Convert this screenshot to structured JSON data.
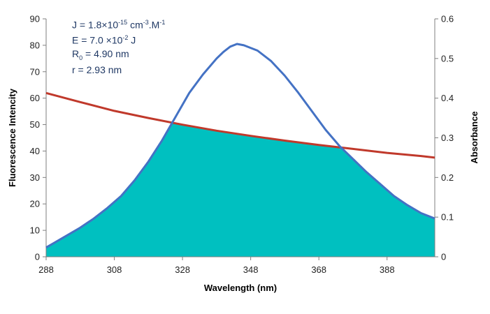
{
  "chart_data": {
    "type": "area",
    "title": "",
    "xlabel": "Wavelength (nm)",
    "ylabel": "Fluorescence Intencity",
    "y2label": "Absorbance",
    "xlim": [
      288,
      402
    ],
    "ylim": [
      0,
      90
    ],
    "y2lim": [
      0,
      0.6
    ],
    "xticks": [
      "288",
      "308",
      "328",
      "348",
      "368",
      "388"
    ],
    "yticks": [
      "0",
      "10",
      "20",
      "30",
      "40",
      "50",
      "60",
      "70",
      "80",
      "90"
    ],
    "y2ticks": [
      "0",
      "0.1",
      "0.2",
      "0.3",
      "0.4",
      "0.5",
      "0.6"
    ],
    "series": [
      {
        "name": "Fluorescence",
        "axis": "left",
        "color": "#4472c4",
        "x": [
          288,
          290,
          294,
          298,
          302,
          306,
          310,
          314,
          318,
          322,
          326,
          330,
          334,
          338,
          340,
          342,
          344,
          346,
          350,
          354,
          358,
          362,
          366,
          370,
          374,
          378,
          382,
          386,
          390,
          394,
          398,
          402
        ],
        "y": [
          3.5,
          5,
          8,
          11,
          14.5,
          18.5,
          23,
          29,
          36,
          44,
          53,
          62,
          69,
          75,
          77.5,
          79.5,
          80.5,
          80,
          78,
          74,
          68.5,
          62,
          55,
          48,
          42,
          37,
          32,
          27.5,
          23,
          19.5,
          16.5,
          14.5
        ]
      },
      {
        "name": "Absorbance",
        "axis": "right",
        "color": "#c0392b",
        "x": [
          288,
          298,
          308,
          318,
          328,
          338,
          348,
          358,
          368,
          378,
          388,
          398,
          402
        ],
        "y": [
          0.413,
          0.39,
          0.368,
          0.35,
          0.333,
          0.318,
          0.305,
          0.293,
          0.282,
          0.272,
          0.262,
          0.254,
          0.25
        ]
      }
    ],
    "overlap_fill": {
      "name": "Spectral overlap",
      "color": "#00c0c0"
    },
    "annotations": {
      "J": {
        "pre": "J = 1.8×10",
        "exp1": "-15",
        "mid": " cm",
        "exp2": "-3",
        "post": ".M",
        "exp3": "-1"
      },
      "E": {
        "pre": "E = 7.0 ×10",
        "exp": "-2",
        "post": "  J"
      },
      "R0": {
        "pre": "R",
        "sub": "0",
        "post": " = 4.90 nm"
      },
      "r": {
        "text": "r = 2.93 nm"
      }
    }
  }
}
